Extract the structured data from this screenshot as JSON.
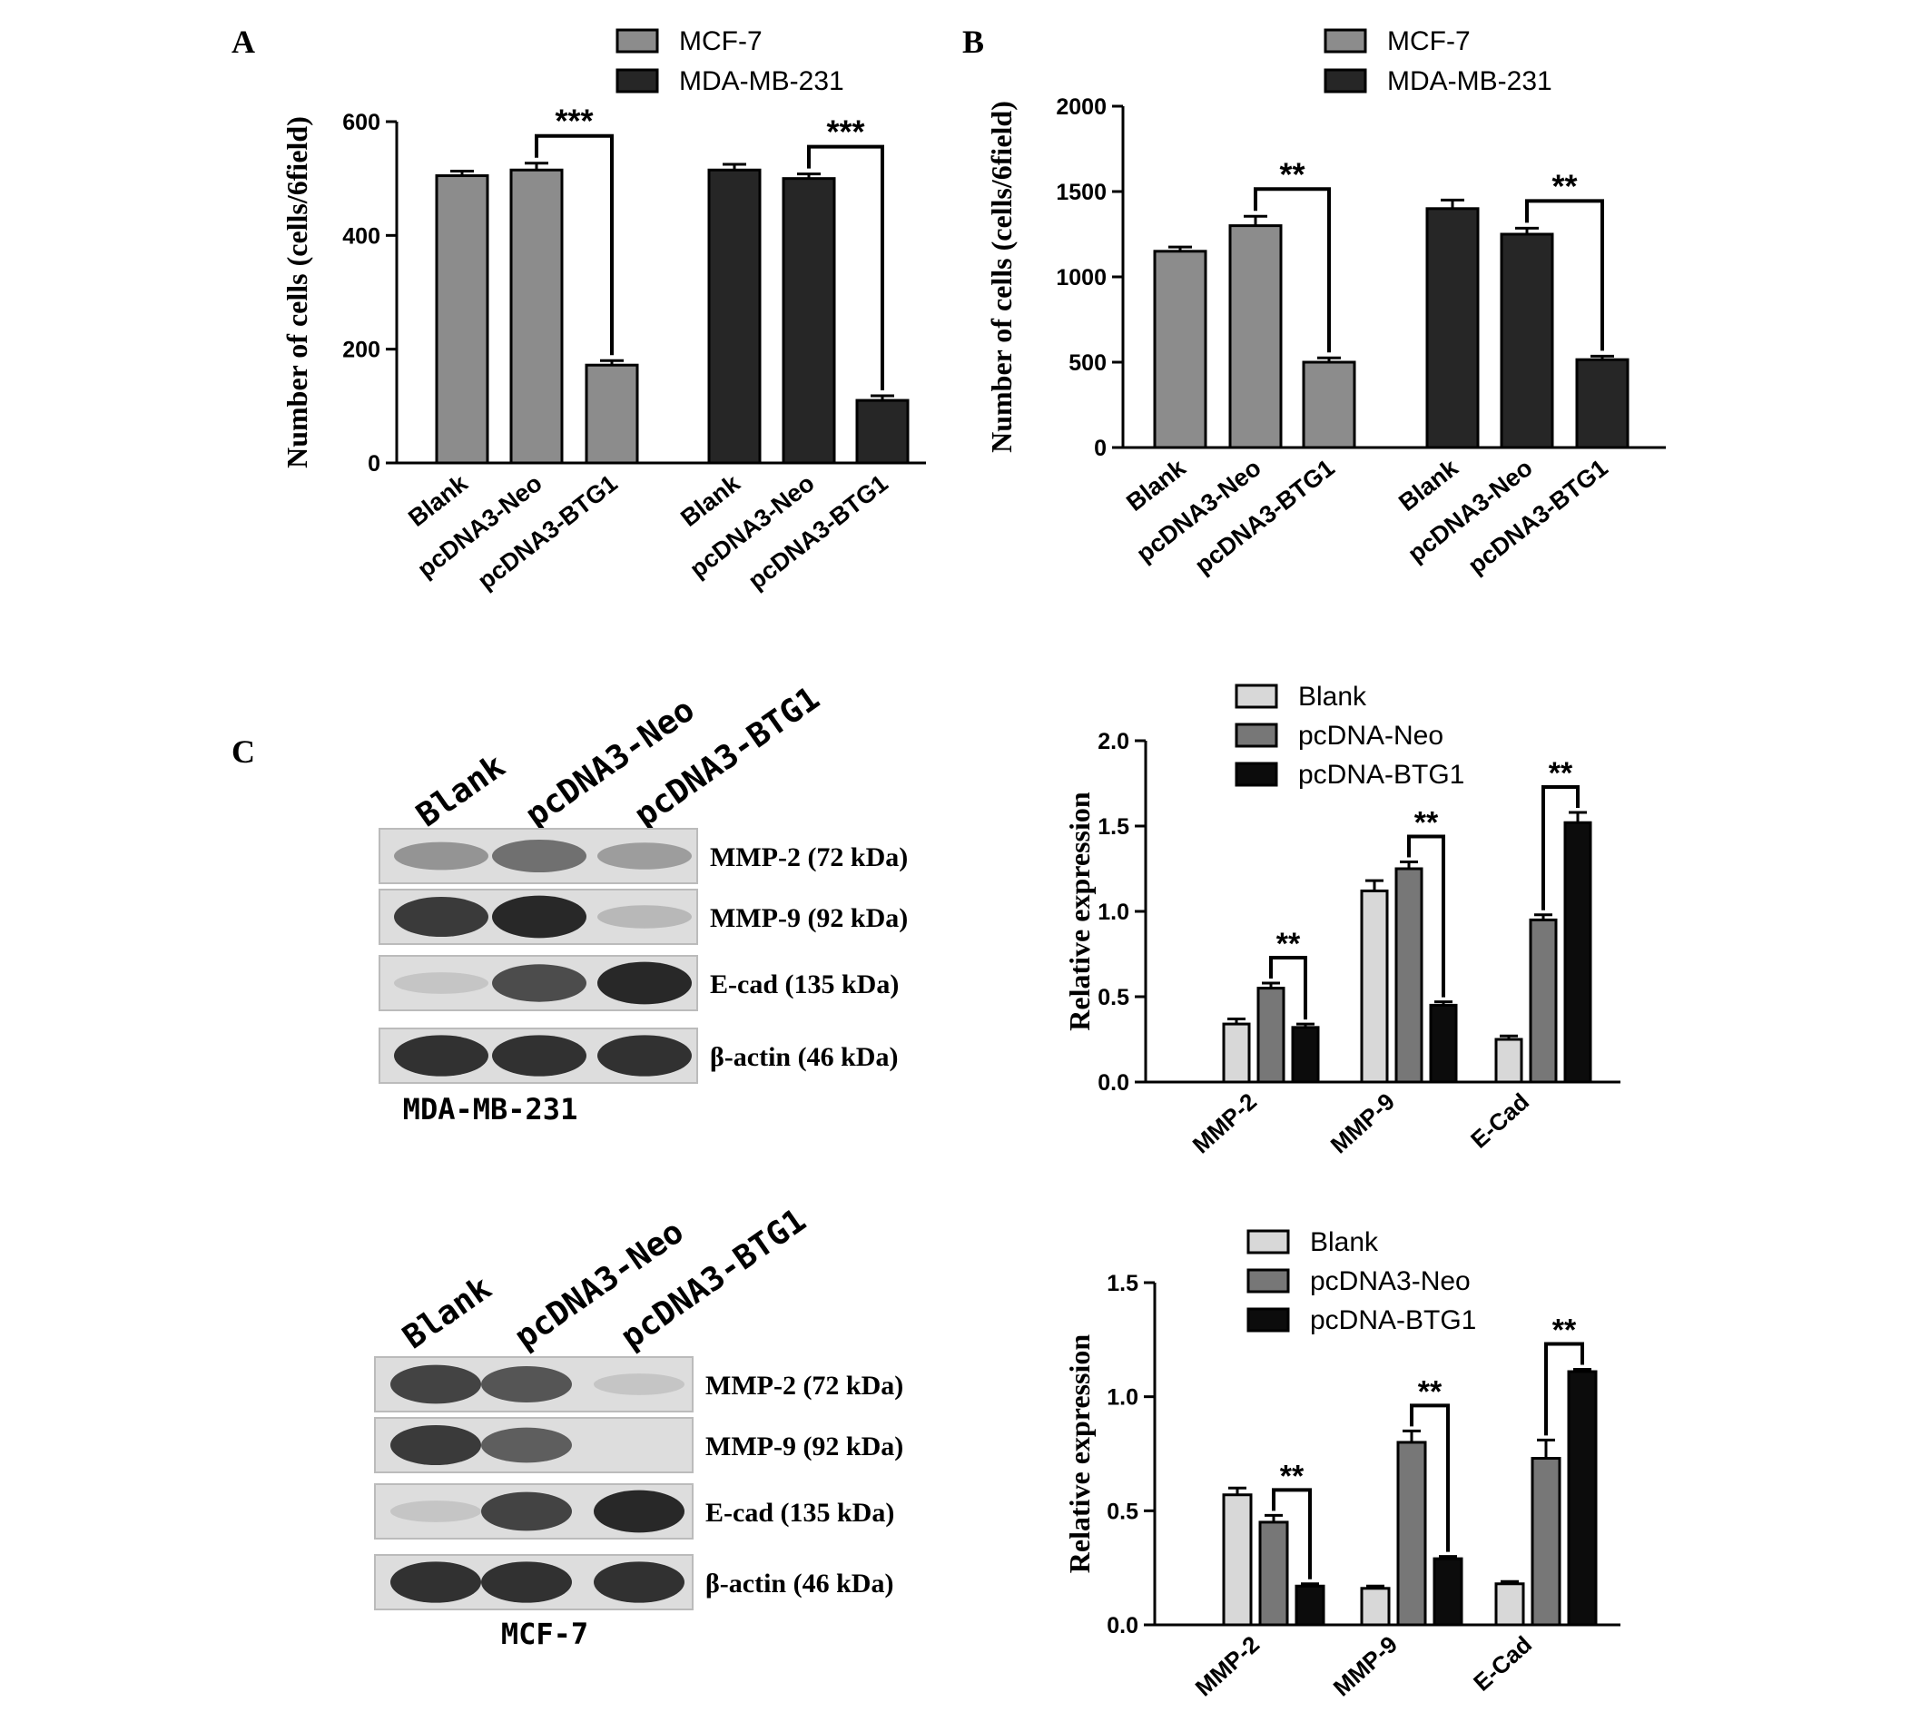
{
  "panel_labels": {
    "a": "A",
    "b": "B",
    "c": "C"
  },
  "colors": {
    "mcf7": "#8c8c8c",
    "mda": "#262626",
    "blank": "#d8d8d8",
    "neo": "#777777",
    "btg1": "#0c0c0c",
    "axis": "#000000"
  },
  "chart_data": [
    {
      "id": "A",
      "type": "bar",
      "ylabel": "Number of cells (cells/6field)",
      "ylim": [
        0,
        600
      ],
      "yticks": [
        0,
        200,
        400,
        600
      ],
      "legend": [
        {
          "name": "MCF-7",
          "color": "#8c8c8c"
        },
        {
          "name": "MDA-MB-231",
          "color": "#262626"
        }
      ],
      "groups": [
        {
          "name": "MCF-7",
          "color": "#8c8c8c",
          "categories": [
            "Blank",
            "pcDNA3-Neo",
            "pcDNA3-BTG1"
          ],
          "values": [
            505,
            515,
            172
          ],
          "errors": [
            8,
            12,
            8
          ]
        },
        {
          "name": "MDA-MB-231",
          "color": "#262626",
          "categories": [
            "Blank",
            "pcDNA3-Neo",
            "pcDNA3-BTG1"
          ],
          "values": [
            515,
            500,
            110
          ],
          "errors": [
            10,
            8,
            8
          ]
        }
      ],
      "annotations": [
        {
          "group": 0,
          "from": 1,
          "to": 2,
          "text": "***"
        },
        {
          "group": 1,
          "from": 1,
          "to": 2,
          "text": "***"
        }
      ]
    },
    {
      "id": "B",
      "type": "bar",
      "ylabel": "Number of cells (cells/6field)",
      "ylim": [
        0,
        2000
      ],
      "yticks": [
        0,
        500,
        1000,
        1500,
        2000
      ],
      "legend": [
        {
          "name": "MCF-7",
          "color": "#8c8c8c"
        },
        {
          "name": "MDA-MB-231",
          "color": "#262626"
        }
      ],
      "groups": [
        {
          "name": "MCF-7",
          "color": "#8c8c8c",
          "categories": [
            "Blank",
            "pcDNA3-Neo",
            "pcDNA3-BTG1"
          ],
          "values": [
            1150,
            1300,
            500
          ],
          "errors": [
            25,
            55,
            25
          ]
        },
        {
          "name": "MDA-MB-231",
          "color": "#262626",
          "categories": [
            "Blank",
            "pcDNA3-Neo",
            "pcDNA3-BTG1"
          ],
          "values": [
            1400,
            1250,
            515
          ],
          "errors": [
            50,
            35,
            20
          ]
        }
      ],
      "annotations": [
        {
          "group": 0,
          "from": 1,
          "to": 2,
          "text": "**"
        },
        {
          "group": 1,
          "from": 1,
          "to": 2,
          "text": "**"
        }
      ]
    },
    {
      "id": "C-MDA-MB-231",
      "type": "bar",
      "ylabel": "Relative expression",
      "ylim": [
        0,
        2.0
      ],
      "yticks": [
        "0.0",
        "0.5",
        "1.0",
        "1.5",
        "2.0"
      ],
      "categories": [
        "MMP-2",
        "MMP-9",
        "E-Cad"
      ],
      "series": [
        {
          "name": "Blank",
          "color": "#d8d8d8",
          "values": [
            0.34,
            1.12,
            0.25
          ],
          "errors": [
            0.03,
            0.06,
            0.02
          ]
        },
        {
          "name": "pcDNA-Neo",
          "color": "#777777",
          "values": [
            0.55,
            1.25,
            0.95
          ],
          "errors": [
            0.03,
            0.04,
            0.03
          ]
        },
        {
          "name": "pcDNA-BTG1",
          "color": "#0c0c0c",
          "values": [
            0.32,
            0.45,
            1.52
          ],
          "errors": [
            0.02,
            0.02,
            0.06
          ]
        }
      ],
      "annotations": [
        {
          "category": 0,
          "from": 1,
          "to": 2,
          "text": "**"
        },
        {
          "category": 1,
          "from": 1,
          "to": 2,
          "text": "**"
        },
        {
          "category": 2,
          "from": 1,
          "to": 2,
          "text": "**"
        }
      ]
    },
    {
      "id": "C-MCF-7",
      "type": "bar",
      "ylabel": "Relative expression",
      "ylim": [
        0,
        1.5
      ],
      "yticks": [
        "0.0",
        "0.5",
        "1.0",
        "1.5"
      ],
      "categories": [
        "MMP-2",
        "MMP-9",
        "E-Cad"
      ],
      "series": [
        {
          "name": "Blank",
          "color": "#d8d8d8",
          "values": [
            0.57,
            0.16,
            0.18
          ],
          "errors": [
            0.03,
            0.01,
            0.01
          ]
        },
        {
          "name": "pcDNA3-Neo",
          "color": "#777777",
          "values": [
            0.45,
            0.8,
            0.73
          ],
          "errors": [
            0.03,
            0.05,
            0.08
          ]
        },
        {
          "name": "pcDNA-BTG1",
          "color": "#0c0c0c",
          "values": [
            0.17,
            0.29,
            1.11
          ],
          "errors": [
            0.01,
            0.01,
            0.01
          ]
        }
      ],
      "annotations": [
        {
          "category": 0,
          "from": 1,
          "to": 2,
          "text": "**"
        },
        {
          "category": 1,
          "from": 1,
          "to": 2,
          "text": "**"
        },
        {
          "category": 2,
          "from": 1,
          "to": 2,
          "text": "**"
        }
      ]
    }
  ],
  "blots": [
    {
      "id": "blot-mda",
      "lanes": [
        "Blank",
        "pcDNA3-Neo",
        "pcDNA3-BTG1"
      ],
      "bands": [
        {
          "label": "MMP-2 (72 kDa)",
          "intensity": [
            0.35,
            0.55,
            0.3
          ]
        },
        {
          "label": "MMP-9 (92 kDa)",
          "intensity": [
            0.85,
            0.95,
            0.15
          ]
        },
        {
          "label": "E-cad (135 kDa)",
          "intensity": [
            0.08,
            0.75,
            0.95
          ]
        },
        {
          "label": "β-actin (46 kDa)",
          "intensity": [
            0.9,
            0.9,
            0.9
          ]
        }
      ],
      "caption": "MDA-MB-231"
    },
    {
      "id": "blot-mcf7",
      "lanes": [
        "Blank",
        "pcDNA3-Neo",
        "pcDNA3-BTG1"
      ],
      "bands": [
        {
          "label": "MMP-2 (72 kDa)",
          "intensity": [
            0.8,
            0.7,
            0.08
          ]
        },
        {
          "label": "MMP-9 (92 kDa)",
          "intensity": [
            0.85,
            0.65,
            0.0
          ]
        },
        {
          "label": "E-cad (135 kDa)",
          "intensity": [
            0.08,
            0.8,
            0.95
          ]
        },
        {
          "label": "β-actin (46 kDa)",
          "intensity": [
            0.9,
            0.9,
            0.9
          ]
        }
      ],
      "caption": "MCF-7"
    }
  ]
}
